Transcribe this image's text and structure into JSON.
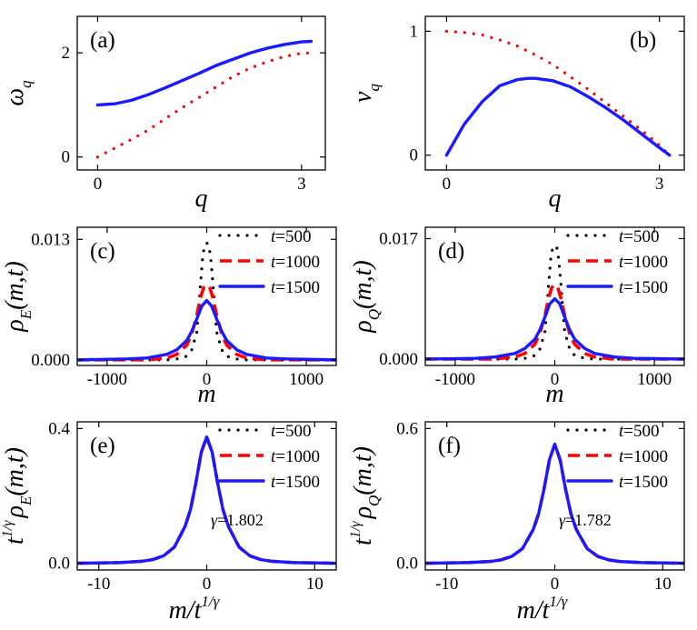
{
  "figure": {
    "panels": [
      {
        "letter": "(a)",
        "xlabel": "q",
        "ylabel_main": "ω",
        "ylabel_sub": "q",
        "xticks": [
          "0",
          "3"
        ],
        "yticks": [
          "0",
          "2"
        ],
        "legend": [],
        "note": ""
      },
      {
        "letter": "(b)",
        "xlabel": "q",
        "ylabel_main": "v",
        "ylabel_sub": "q",
        "xticks": [
          "0",
          "3"
        ],
        "yticks": [
          "0",
          "1"
        ],
        "legend": [],
        "note": ""
      },
      {
        "letter": "(c)",
        "xlabel": "m",
        "ylabel_main": "ρ",
        "ylabel_sub": "E",
        "ylabel_tail": "(m,t)",
        "xticks": [
          "-1000",
          "0",
          "1000"
        ],
        "yticks": [
          "0.000",
          "0.013"
        ],
        "legend": [
          "t=500",
          "t=1000",
          "t=1500"
        ],
        "note": ""
      },
      {
        "letter": "(d)",
        "xlabel": "m",
        "ylabel_main": "ρ",
        "ylabel_sub": "Q",
        "ylabel_tail": "(m,t)",
        "xticks": [
          "-1000",
          "0",
          "1000"
        ],
        "yticks": [
          "0.000",
          "0.017"
        ],
        "legend": [
          "t=500",
          "t=1000",
          "t=1500"
        ],
        "note": ""
      },
      {
        "letter": "(e)",
        "xlabel_main": "m/t",
        "xlabel_sup": "1/γ",
        "ylabel_pre": "t",
        "ylabel_sup": "1/γ",
        "ylabel_main": "ρ",
        "ylabel_sub": "E",
        "ylabel_tail": "(m,t)",
        "xticks": [
          "-10",
          "0",
          "10"
        ],
        "yticks": [
          "0.0",
          "0.4"
        ],
        "legend": [
          "t=500",
          "t=1000",
          "t=1500"
        ],
        "note": "γ=1.802"
      },
      {
        "letter": "(f)",
        "xlabel_main": "m/t",
        "xlabel_sup": "1/γ",
        "ylabel_pre": "t",
        "ylabel_sup": "1/γ",
        "ylabel_main": "ρ",
        "ylabel_sub": "Q",
        "ylabel_tail": "(m,t)",
        "xticks": [
          "-10",
          "0",
          "10"
        ],
        "yticks": [
          "0.0",
          "0.6"
        ],
        "legend": [
          "t=500",
          "t=1000",
          "t=1500"
        ],
        "note": "γ=1.782"
      }
    ]
  },
  "chart_data": [
    {
      "type": "line",
      "panel": "(a)",
      "xlim": [
        -0.3,
        3.35
      ],
      "ylim": [
        -0.25,
        2.7
      ],
      "series": [
        {
          "style": "dotted",
          "color": "#ff0000",
          "x": [
            0,
            0.25,
            0.5,
            0.75,
            1.0,
            1.25,
            1.5,
            1.75,
            2.0,
            2.25,
            2.5,
            2.75,
            3.0,
            3.1416
          ],
          "y": [
            0.0,
            0.17,
            0.34,
            0.52,
            0.74,
            0.95,
            1.15,
            1.35,
            1.55,
            1.71,
            1.83,
            1.93,
            1.99,
            2.0
          ]
        },
        {
          "style": "solid",
          "color": "#1a1aff",
          "x": [
            0,
            0.25,
            0.5,
            0.75,
            1.0,
            1.25,
            1.5,
            1.75,
            2.0,
            2.25,
            2.5,
            2.75,
            3.0,
            3.1416
          ],
          "y": [
            1.0,
            1.02,
            1.09,
            1.2,
            1.33,
            1.47,
            1.61,
            1.76,
            1.88,
            2.0,
            2.09,
            2.16,
            2.21,
            2.22
          ]
        }
      ]
    },
    {
      "type": "line",
      "panel": "(b)",
      "xlim": [
        -0.3,
        3.35
      ],
      "ylim": [
        -0.12,
        1.12
      ],
      "series": [
        {
          "style": "dotted",
          "color": "#ff0000",
          "x": [
            0,
            0.25,
            0.5,
            0.75,
            1.0,
            1.25,
            1.5,
            1.75,
            2.0,
            2.25,
            2.5,
            2.75,
            3.0,
            3.1416
          ],
          "y": [
            1.0,
            0.99,
            0.97,
            0.93,
            0.88,
            0.81,
            0.73,
            0.63,
            0.53,
            0.42,
            0.31,
            0.2,
            0.08,
            0.0
          ]
        },
        {
          "style": "solid",
          "color": "#1a1aff",
          "x": [
            0,
            0.25,
            0.5,
            0.75,
            1.0,
            1.15,
            1.25,
            1.5,
            1.75,
            2.0,
            2.25,
            2.5,
            2.75,
            3.0,
            3.1416
          ],
          "y": [
            0.0,
            0.25,
            0.43,
            0.56,
            0.61,
            0.62,
            0.62,
            0.6,
            0.55,
            0.47,
            0.38,
            0.28,
            0.17,
            0.06,
            0.0
          ]
        }
      ]
    },
    {
      "type": "line",
      "panel": "(c)",
      "xlim": [
        -1300,
        1300
      ],
      "ylim": [
        -0.0006,
        0.0143
      ],
      "series": [
        {
          "name": "t=500",
          "style": "dotted",
          "color": "#000000",
          "x": [
            -1300,
            -600,
            -400,
            -300,
            -200,
            -150,
            -100,
            -80,
            -60,
            -40,
            -20,
            0,
            20,
            40,
            60,
            80,
            100,
            150,
            200,
            300,
            400,
            600,
            1300
          ],
          "y": [
            0,
            0,
            0.0,
            0.0001,
            0.0004,
            0.0011,
            0.003,
            0.0055,
            0.0085,
            0.0112,
            0.0124,
            0.0126,
            0.0124,
            0.011,
            0.0085,
            0.0055,
            0.003,
            0.0011,
            0.0004,
            0.0001,
            0,
            0,
            0
          ]
        },
        {
          "name": "t=1000",
          "style": "dashed",
          "color": "#ff0000",
          "x": [
            -1300,
            -600,
            -400,
            -300,
            -200,
            -150,
            -100,
            -60,
            -30,
            0,
            30,
            60,
            100,
            150,
            200,
            300,
            400,
            600,
            1300
          ],
          "y": [
            0,
            0,
            0.0002,
            0.0006,
            0.0016,
            0.0028,
            0.0048,
            0.0068,
            0.0078,
            0.0081,
            0.0078,
            0.0068,
            0.0048,
            0.0028,
            0.0016,
            0.0006,
            0.0002,
            0,
            0
          ]
        },
        {
          "name": "t=1500",
          "style": "solid",
          "color": "#1a1aff",
          "x": [
            -1300,
            -800,
            -600,
            -400,
            -300,
            -200,
            -150,
            -100,
            -50,
            0,
            50,
            100,
            150,
            200,
            300,
            400,
            600,
            800,
            1300
          ],
          "y": [
            0,
            0.0001,
            0.0002,
            0.0006,
            0.0011,
            0.0021,
            0.0031,
            0.0044,
            0.0058,
            0.0064,
            0.0058,
            0.0044,
            0.0031,
            0.0021,
            0.0011,
            0.0006,
            0.0002,
            0.0001,
            0
          ]
        }
      ]
    },
    {
      "type": "line",
      "panel": "(d)",
      "xlim": [
        -1300,
        1300
      ],
      "ylim": [
        -0.0009,
        0.0186
      ],
      "series": [
        {
          "name": "t=500",
          "style": "dotted",
          "color": "#000000",
          "x": [
            -1300,
            -600,
            -400,
            -300,
            -200,
            -150,
            -100,
            -80,
            -60,
            -40,
            -20,
            0,
            20,
            40,
            60,
            80,
            100,
            150,
            200,
            300,
            400,
            600,
            1300
          ],
          "y": [
            0,
            0,
            0.0,
            0.0001,
            0.0005,
            0.0014,
            0.0038,
            0.007,
            0.0108,
            0.0142,
            0.0158,
            0.016,
            0.0158,
            0.014,
            0.0108,
            0.007,
            0.0038,
            0.0014,
            0.0005,
            0.0001,
            0,
            0,
            0
          ]
        },
        {
          "name": "t=1000",
          "style": "dashed",
          "color": "#ff0000",
          "x": [
            -1300,
            -600,
            -400,
            -300,
            -200,
            -150,
            -100,
            -60,
            -30,
            0,
            30,
            60,
            100,
            150,
            200,
            300,
            400,
            600,
            1300
          ],
          "y": [
            0,
            0,
            0.0003,
            0.0008,
            0.0021,
            0.0036,
            0.0061,
            0.0087,
            0.0101,
            0.0105,
            0.0101,
            0.0087,
            0.0061,
            0.0036,
            0.0021,
            0.0008,
            0.0003,
            0,
            0
          ]
        },
        {
          "name": "t=1500",
          "style": "solid",
          "color": "#1a1aff",
          "x": [
            -1300,
            -800,
            -600,
            -400,
            -300,
            -200,
            -150,
            -100,
            -50,
            0,
            50,
            100,
            150,
            200,
            300,
            400,
            600,
            800,
            1300
          ],
          "y": [
            0,
            0.0001,
            0.0003,
            0.0008,
            0.0015,
            0.0028,
            0.0041,
            0.0059,
            0.0078,
            0.0085,
            0.0078,
            0.0059,
            0.0041,
            0.0028,
            0.0015,
            0.0008,
            0.0003,
            0.0001,
            0
          ]
        }
      ]
    },
    {
      "type": "line",
      "panel": "(e)",
      "xlim": [
        -12,
        12
      ],
      "ylim": [
        -0.02,
        0.42
      ],
      "series": [
        {
          "name": "t=500",
          "style": "dotted",
          "color": "#000000",
          "x": [
            -12,
            -8,
            -6,
            -5,
            -4,
            -3,
            -2,
            -1.5,
            -1,
            -0.5,
            0,
            0.5,
            1,
            1.5,
            2,
            3,
            4,
            5,
            6,
            8,
            12
          ],
          "y": [
            0,
            0.002,
            0.006,
            0.011,
            0.022,
            0.048,
            0.11,
            0.16,
            0.24,
            0.33,
            0.375,
            0.33,
            0.24,
            0.16,
            0.11,
            0.048,
            0.022,
            0.011,
            0.006,
            0.002,
            0
          ]
        },
        {
          "name": "t=1000",
          "style": "dashed",
          "color": "#ff0000",
          "x": [
            -12,
            -8,
            -6,
            -5,
            -4,
            -3,
            -2,
            -1.5,
            -1,
            -0.5,
            0,
            0.5,
            1,
            1.5,
            2,
            3,
            4,
            5,
            6,
            8,
            12
          ],
          "y": [
            0,
            0.002,
            0.006,
            0.011,
            0.022,
            0.048,
            0.11,
            0.16,
            0.24,
            0.33,
            0.375,
            0.33,
            0.24,
            0.16,
            0.11,
            0.048,
            0.022,
            0.011,
            0.006,
            0.002,
            0
          ]
        },
        {
          "name": "t=1500",
          "style": "solid",
          "color": "#1a1aff",
          "x": [
            -12,
            -8,
            -6,
            -5,
            -4,
            -3,
            -2,
            -1.5,
            -1,
            -0.5,
            0,
            0.5,
            1,
            1.5,
            2,
            3,
            4,
            5,
            6,
            8,
            12
          ],
          "y": [
            0,
            0.002,
            0.006,
            0.011,
            0.022,
            0.048,
            0.11,
            0.16,
            0.24,
            0.33,
            0.375,
            0.33,
            0.24,
            0.16,
            0.11,
            0.048,
            0.022,
            0.011,
            0.006,
            0.002,
            0
          ]
        }
      ]
    },
    {
      "type": "line",
      "panel": "(f)",
      "xlim": [
        -12,
        12
      ],
      "ylim": [
        -0.03,
        0.63
      ],
      "series": [
        {
          "name": "t=500",
          "style": "dotted",
          "color": "#000000",
          "x": [
            -12,
            -8,
            -6,
            -5,
            -4,
            -3,
            -2,
            -1.5,
            -1,
            -0.5,
            0,
            0.5,
            1,
            1.5,
            2,
            3,
            4,
            5,
            6,
            8,
            12
          ],
          "y": [
            0,
            0.003,
            0.008,
            0.015,
            0.03,
            0.065,
            0.15,
            0.22,
            0.33,
            0.46,
            0.53,
            0.46,
            0.33,
            0.22,
            0.15,
            0.065,
            0.03,
            0.015,
            0.008,
            0.003,
            0
          ]
        },
        {
          "name": "t=1000",
          "style": "dashed",
          "color": "#ff0000",
          "x": [
            -12,
            -8,
            -6,
            -5,
            -4,
            -3,
            -2,
            -1.5,
            -1,
            -0.5,
            0,
            0.5,
            1,
            1.5,
            2,
            3,
            4,
            5,
            6,
            8,
            12
          ],
          "y": [
            0,
            0.003,
            0.008,
            0.015,
            0.03,
            0.065,
            0.15,
            0.22,
            0.33,
            0.46,
            0.53,
            0.46,
            0.33,
            0.22,
            0.15,
            0.065,
            0.03,
            0.015,
            0.008,
            0.003,
            0
          ]
        },
        {
          "name": "t=1500",
          "style": "solid",
          "color": "#1a1aff",
          "x": [
            -12,
            -8,
            -6,
            -5,
            -4,
            -3,
            -2,
            -1.5,
            -1,
            -0.5,
            0,
            0.5,
            1,
            1.5,
            2,
            3,
            4,
            5,
            6,
            8,
            12
          ],
          "y": [
            0,
            0.003,
            0.008,
            0.015,
            0.03,
            0.065,
            0.15,
            0.22,
            0.33,
            0.46,
            0.53,
            0.46,
            0.33,
            0.22,
            0.15,
            0.065,
            0.03,
            0.015,
            0.008,
            0.003,
            0
          ]
        }
      ]
    }
  ]
}
